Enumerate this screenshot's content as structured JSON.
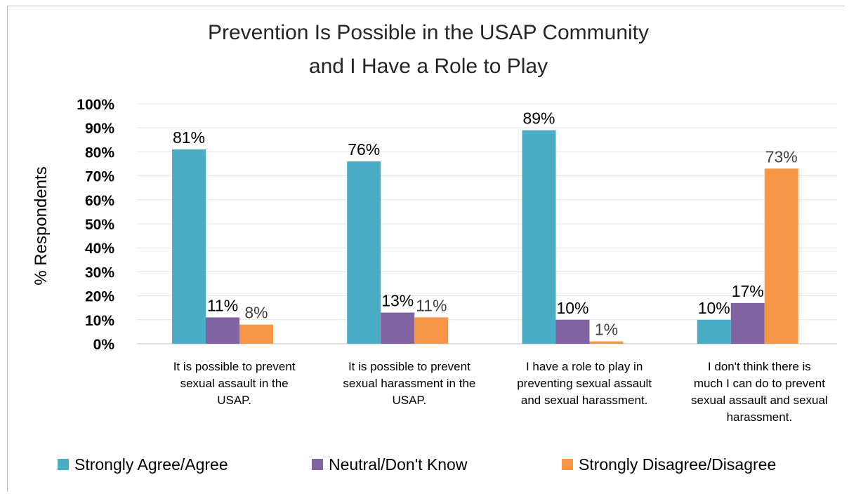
{
  "chart_data": {
    "type": "bar",
    "title_lines": [
      "Prevention Is Possible in the USAP Community",
      "and I Have a Role to Play"
    ],
    "ylabel": "% Respondents",
    "xlabel": "",
    "ylim": [
      0,
      100
    ],
    "yticks": [
      "0%",
      "10%",
      "20%",
      "30%",
      "40%",
      "50%",
      "60%",
      "70%",
      "80%",
      "90%",
      "100%"
    ],
    "grid": true,
    "legend_position": "bottom",
    "categories": [
      [
        "It is possible to prevent",
        "sexual assault in the",
        "USAP."
      ],
      [
        "It is possible to prevent",
        "sexual harassment in the",
        "USAP."
      ],
      [
        "I have a role to play in",
        "preventing sexual assault",
        "and sexual harassment."
      ],
      [
        "I don't think there is",
        "much I can do to prevent",
        "sexual assault and sexual",
        "harassment."
      ]
    ],
    "series": [
      {
        "name": "Strongly Agree/Agree",
        "color": "#4bacc6",
        "values": [
          81,
          76,
          89,
          10
        ],
        "labels": [
          "81%",
          "76%",
          "89%",
          "10%"
        ],
        "label_color": "#000000"
      },
      {
        "name": "Neutral/Don't Know",
        "color": "#8064a2",
        "values": [
          11,
          13,
          10,
          17
        ],
        "labels": [
          "11%",
          "13%",
          "10%",
          "17%"
        ],
        "label_color": "#000000"
      },
      {
        "name": "Strongly Disagree/Disagree",
        "color": "#f79646",
        "values": [
          8,
          11,
          1,
          73
        ],
        "labels": [
          "8%",
          "11%",
          "1%",
          "73%"
        ],
        "label_color": "#404040"
      }
    ]
  }
}
